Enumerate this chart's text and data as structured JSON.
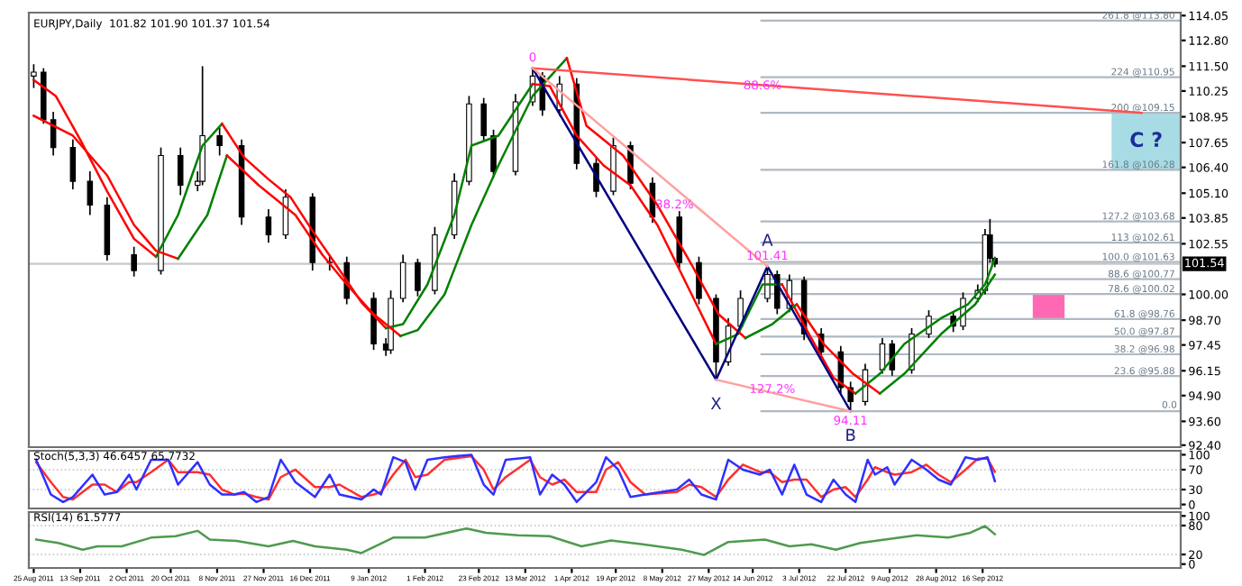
{
  "chart_data": [
    {
      "type": "candlestick",
      "title": "EURJPY,Daily  101.82 101.90 101.37 101.54",
      "color": "#000000",
      "legend": false,
      "tick_labels": "y",
      "x": [
        "2011-08-25",
        "2011-08-29",
        "2011-09-02",
        "2011-09-10",
        "2011-09-17",
        "2011-09-24",
        "2011-10-05",
        "2011-10-16",
        "2011-10-24",
        "2011-10-31",
        "2011-11-02",
        "2011-11-09",
        "2011-11-18",
        "2011-11-29",
        "2011-12-06",
        "2011-12-17",
        "2011-12-24",
        "2011-12-31",
        "2012-01-11",
        "2012-01-16",
        "2012-01-18",
        "2012-01-23",
        "2012-01-29",
        "2012-02-05",
        "2012-02-13",
        "2012-02-19",
        "2012-02-25",
        "2012-02-29",
        "2012-03-09",
        "2012-03-16",
        "2012-03-20",
        "2012-03-27",
        "2012-04-03",
        "2012-04-11",
        "2012-04-18",
        "2012-04-25",
        "2012-05-04",
        "2012-05-15",
        "2012-05-23",
        "2012-05-30",
        "2012-06-04",
        "2012-06-09",
        "2012-06-20",
        "2012-06-24",
        "2012-06-29",
        "2012-07-05",
        "2012-07-12",
        "2012-07-20",
        "2012-07-24",
        "2012-07-30",
        "2012-08-06",
        "2012-08-10",
        "2012-08-18",
        "2012-08-25",
        "2012-09-04",
        "2012-09-08",
        "2012-09-14",
        "2012-09-17",
        "2012-09-19",
        "2012-09-21"
      ],
      "ohlc": [
        [
          111.0,
          111.6,
          110.4,
          111.2
        ],
        [
          111.2,
          111.4,
          108.6,
          108.8
        ],
        [
          108.8,
          109.2,
          107.0,
          107.4
        ],
        [
          107.4,
          107.8,
          105.3,
          105.7
        ],
        [
          105.7,
          106.2,
          104.0,
          104.5
        ],
        [
          104.5,
          104.9,
          101.7,
          102.0
        ],
        [
          102.0,
          102.4,
          100.9,
          101.2
        ],
        [
          101.2,
          107.4,
          101.0,
          107.0
        ],
        [
          107.0,
          107.4,
          105.0,
          105.5
        ],
        [
          105.5,
          106.2,
          105.2,
          105.7
        ],
        [
          105.7,
          111.5,
          105.5,
          108.0
        ],
        [
          108.0,
          108.4,
          107.0,
          107.5
        ],
        [
          107.5,
          107.8,
          103.5,
          103.9
        ],
        [
          103.9,
          104.3,
          102.6,
          103.0
        ],
        [
          103.0,
          105.3,
          102.8,
          104.9
        ],
        [
          104.9,
          105.1,
          101.2,
          101.6
        ],
        [
          101.6,
          102.0,
          101.2,
          101.6
        ],
        [
          101.6,
          101.9,
          99.5,
          99.8
        ],
        [
          99.8,
          100.1,
          97.2,
          97.5
        ],
        [
          97.5,
          97.8,
          96.9,
          97.2
        ],
        [
          97.2,
          100.2,
          97.0,
          99.8
        ],
        [
          99.8,
          102.0,
          99.6,
          101.6
        ],
        [
          101.6,
          101.8,
          99.9,
          100.2
        ],
        [
          100.2,
          103.4,
          100.0,
          103.0
        ],
        [
          103.0,
          106.1,
          102.8,
          105.7
        ],
        [
          105.7,
          110.0,
          105.5,
          109.6
        ],
        [
          109.6,
          109.9,
          107.7,
          108.0
        ],
        [
          108.0,
          108.3,
          105.9,
          106.2
        ],
        [
          106.2,
          110.1,
          106.0,
          109.7
        ],
        [
          109.7,
          111.4,
          109.5,
          111.0
        ],
        [
          111.0,
          111.2,
          109.0,
          109.3
        ],
        [
          109.3,
          111.0,
          109.0,
          110.6
        ],
        [
          110.6,
          110.9,
          106.3,
          106.6
        ],
        [
          106.6,
          106.9,
          104.9,
          105.2
        ],
        [
          105.2,
          107.9,
          105.0,
          107.5
        ],
        [
          107.5,
          107.7,
          105.3,
          105.6
        ],
        [
          105.6,
          105.9,
          103.6,
          103.9
        ],
        [
          103.9,
          104.2,
          101.3,
          101.6
        ],
        [
          101.6,
          101.9,
          99.5,
          99.8
        ],
        [
          99.8,
          100.0,
          95.7,
          96.6
        ],
        [
          96.6,
          98.8,
          96.4,
          98.4
        ],
        [
          98.4,
          100.2,
          98.2,
          99.8
        ],
        [
          99.8,
          101.41,
          99.6,
          101.0
        ],
        [
          101.0,
          101.2,
          99.0,
          99.3
        ],
        [
          99.3,
          101.0,
          99.1,
          100.7
        ],
        [
          100.7,
          100.9,
          97.7,
          98.0
        ],
        [
          98.0,
          98.3,
          96.8,
          97.1
        ],
        [
          97.1,
          97.4,
          95.0,
          95.3
        ],
        [
          95.3,
          95.6,
          94.11,
          94.6
        ],
        [
          94.6,
          96.5,
          94.4,
          96.2
        ],
        [
          96.2,
          97.8,
          96.0,
          97.5
        ],
        [
          97.5,
          97.7,
          95.9,
          96.2
        ],
        [
          96.2,
          98.3,
          96.0,
          98.0
        ],
        [
          98.0,
          99.2,
          97.8,
          98.9
        ],
        [
          98.9,
          99.1,
          98.1,
          98.4
        ],
        [
          98.4,
          100.1,
          98.2,
          99.8
        ],
        [
          99.8,
          100.5,
          99.6,
          100.2
        ],
        [
          100.2,
          103.3,
          100.0,
          103.0
        ],
        [
          103.0,
          103.8,
          101.6,
          101.82
        ],
        [
          101.82,
          101.9,
          101.37,
          101.54
        ]
      ],
      "series": [
        {
          "type": "line",
          "color": "#ff0000",
          "x": [
            "2011-08-25",
            "2011-09-03",
            "2011-09-13",
            "2011-09-24",
            "2011-10-05",
            "2011-10-14"
          ],
          "values": [
            110.8,
            110.0,
            107.8,
            105.2,
            102.8,
            101.9
          ]
        },
        {
          "type": "line",
          "color": "#008000",
          "x": [
            "2011-10-14",
            "2011-10-23",
            "2011-11-02",
            "2011-11-10"
          ],
          "values": [
            101.9,
            104.0,
            107.5,
            108.6
          ]
        },
        {
          "type": "line",
          "color": "#ff0000",
          "x": [
            "2011-11-10",
            "2011-11-19",
            "2011-11-29",
            "2011-12-08",
            "2011-12-17",
            "2011-12-26",
            "2012-01-06",
            "2012-01-16"
          ],
          "values": [
            108.6,
            106.9,
            105.8,
            104.9,
            103.2,
            101.6,
            99.6,
            98.3
          ]
        },
        {
          "type": "line",
          "color": "#008000",
          "x": [
            "2012-01-16",
            "2012-01-23",
            "2012-02-02",
            "2012-02-13",
            "2012-02-20",
            "2012-03-02",
            "2012-03-16"
          ],
          "values": [
            98.3,
            98.5,
            100.5,
            104.0,
            107.5,
            108.0,
            110.6
          ]
        },
        {
          "type": "line",
          "color": "#ff0000",
          "x": [
            "2012-03-16",
            "2012-03-23",
            "2012-04-03",
            "2012-04-14",
            "2012-04-25",
            "2012-05-06",
            "2012-05-20",
            "2012-05-30"
          ],
          "values": [
            110.6,
            110.5,
            108.0,
            106.5,
            105.5,
            103.5,
            100.0,
            97.5
          ]
        },
        {
          "type": "line",
          "color": "#008000",
          "x": [
            "2012-05-30",
            "2012-06-08",
            "2012-06-18",
            "2012-06-26"
          ],
          "values": [
            97.5,
            98.0,
            100.5,
            100.5
          ]
        },
        {
          "type": "line",
          "color": "#ff0000",
          "x": [
            "2012-06-26",
            "2012-07-07",
            "2012-07-17",
            "2012-07-26"
          ],
          "values": [
            100.5,
            98.0,
            95.8,
            95.0
          ]
        },
        {
          "type": "line",
          "color": "#008000",
          "x": [
            "2012-07-26",
            "2012-08-05",
            "2012-08-15",
            "2012-08-30",
            "2012-09-10",
            "2012-09-17",
            "2012-09-21"
          ],
          "values": [
            95.0,
            96.0,
            97.5,
            98.8,
            99.5,
            100.5,
            101.8
          ]
        },
        {
          "type": "line",
          "color": "#ff0000",
          "x": [
            "2011-08-25",
            "2011-09-10",
            "2011-09-24",
            "2011-10-05",
            "2011-10-14",
            "2011-10-23"
          ],
          "values": [
            109.0,
            108.0,
            106.0,
            103.5,
            102.2,
            101.8
          ]
        },
        {
          "type": "line",
          "color": "#008000",
          "x": [
            "2011-10-23",
            "2011-11-04",
            "2011-11-12"
          ],
          "values": [
            101.8,
            104.0,
            107.0
          ]
        },
        {
          "type": "line",
          "color": "#ff0000",
          "x": [
            "2011-11-12",
            "2011-11-25",
            "2011-12-10",
            "2011-12-21",
            "2011-12-31",
            "2012-01-11",
            "2012-01-22"
          ],
          "values": [
            107.0,
            105.5,
            104.0,
            102.0,
            100.5,
            99.0,
            97.9
          ]
        },
        {
          "type": "line",
          "color": "#008000",
          "x": [
            "2012-01-22",
            "2012-01-29",
            "2012-02-09",
            "2012-02-20",
            "2012-03-02",
            "2012-03-16",
            "2012-03-30"
          ],
          "values": [
            97.9,
            98.2,
            100.0,
            103.5,
            106.5,
            110.0,
            111.9
          ]
        },
        {
          "type": "line",
          "color": "#ff0000",
          "x": [
            "2012-03-30",
            "2012-04-07",
            "2012-04-22",
            "2012-05-06",
            "2012-05-20",
            "2012-05-31",
            "2012-06-11"
          ],
          "values": [
            111.9,
            108.5,
            107.0,
            104.5,
            101.5,
            99.0,
            97.8
          ]
        },
        {
          "type": "line",
          "color": "#008000",
          "x": [
            "2012-06-11",
            "2012-06-22",
            "2012-07-02"
          ],
          "values": [
            97.8,
            98.5,
            99.5
          ]
        },
        {
          "type": "line",
          "color": "#ff0000",
          "x": [
            "2012-07-02",
            "2012-07-13",
            "2012-07-25",
            "2012-08-05"
          ],
          "values": [
            99.5,
            97.5,
            96.0,
            95.0
          ]
        },
        {
          "type": "line",
          "color": "#008000",
          "x": [
            "2012-08-05",
            "2012-08-15",
            "2012-08-30",
            "2012-09-13",
            "2012-09-21"
          ],
          "values": [
            95.0,
            96.0,
            98.0,
            99.5,
            101.0
          ]
        },
        {
          "type": "line",
          "color": "#000080",
          "x": [
            "2012-03-16",
            "2012-05-30",
            "2012-06-20",
            "2012-07-24"
          ],
          "values": [
            111.4,
            95.7,
            101.41,
            94.11
          ]
        },
        {
          "type": "line",
          "color": "#ff5050",
          "x": [
            "2012-03-16",
            "2012-11-20"
          ],
          "values": [
            111.4,
            109.15
          ]
        },
        {
          "type": "line",
          "color": "#ffa0a0",
          "x": [
            "2012-03-16",
            "2012-06-20"
          ],
          "values": [
            111.4,
            101.41
          ]
        },
        {
          "type": "line",
          "color": "#ffa0a0",
          "x": [
            "2012-05-30",
            "2012-07-24"
          ],
          "values": [
            95.7,
            94.11
          ]
        },
        {
          "type": "bar",
          "color": "#ff69b4",
          "x": [
            "2012-10-13"
          ],
          "base": [
            98.76
          ],
          "values": [
            1.24
          ]
        }
      ],
      "ylim": [
        92.3,
        114.2
      ],
      "yticks": [
        114.05,
        {
          "value": 112.8,
          "label": "112.80"
        },
        {
          "value": 111.5,
          "label": "111.50"
        },
        110.25,
        108.95,
        107.65,
        {
          "value": 106.4,
          "label": "106.40"
        },
        {
          "value": 105.1,
          "label": "105.10"
        },
        103.85,
        102.55,
        {
          "value": 100.0,
          "label": "100.00"
        },
        {
          "value": 98.7,
          "label": "98.70"
        },
        97.45,
        96.15,
        {
          "value": 94.9,
          "label": "94.90"
        },
        {
          "value": 93.6,
          "label": "93.60"
        },
        {
          "value": 92.4,
          "label": "92.40"
        }
      ],
      "xlim": [
        "2011-08-23",
        "2012-12-06"
      ],
      "ref_lines": [
        {
          "axis": "y",
          "value": 113.8,
          "label": "261.8 @113.80",
          "color": "#b0b8c0"
        },
        {
          "axis": "y",
          "value": 110.95,
          "label": "224 @110.95",
          "color": "#b0b8c0"
        },
        {
          "axis": "y",
          "value": 109.15,
          "label": "200 @109.15",
          "color": "#b0b8c0"
        },
        {
          "axis": "y",
          "value": 106.28,
          "label": "161.8 @106.28",
          "color": "#b0b8c0"
        },
        {
          "axis": "y",
          "value": 103.68,
          "label": "127.2 @103.68",
          "color": "#b0b8c0"
        },
        {
          "axis": "y",
          "value": 102.61,
          "label": "113 @102.61",
          "color": "#b0b8c0"
        },
        {
          "axis": "y",
          "value": 101.63,
          "label": "100.0 @101.63",
          "color": "#b0b8c0"
        },
        {
          "axis": "y",
          "value": 100.77,
          "label": "88.6 @100.77",
          "color": "#b0b8c0"
        },
        {
          "axis": "y",
          "value": 100.02,
          "label": "78.6 @100.02",
          "color": "#b0b8c0"
        },
        {
          "axis": "y",
          "value": 98.76,
          "label": "61.8 @98.76",
          "color": "#b0b8c0"
        },
        {
          "axis": "y",
          "value": 97.87,
          "label": "50.0 @97.87",
          "color": "#b0b8c0"
        },
        {
          "axis": "y",
          "value": 96.98,
          "label": "38.2 @96.98",
          "color": "#b0b8c0"
        },
        {
          "axis": "y",
          "value": 95.88,
          "label": "23.6 @95.88",
          "color": "#b0b8c0"
        },
        {
          "axis": "y",
          "value": 94.11,
          "color": "#b0b8c0"
        },
        {
          "axis": "y",
          "value": 101.54,
          "label": "101.54",
          "color": "#c8c8c8",
          "line_style": "solid"
        }
      ],
      "bands": [
        {
          "axis": "y",
          "from": 106.28,
          "to": 109.15,
          "label": "C ?",
          "color": "#a8dce4"
        }
      ],
      "annotations": [
        {
          "text": "0",
          "x": "2012-03-16",
          "y": 111.4
        },
        {
          "text": "X",
          "x": "2012-05-30",
          "y": 95.7
        },
        {
          "text": "A",
          "x": "2012-06-20",
          "y": 101.41
        },
        {
          "text": "101.41",
          "x": "2012-06-20",
          "y": 101.41
        },
        {
          "text": "B",
          "x": "2012-07-24",
          "y": 94.11
        },
        {
          "text": "94.11",
          "x": "2012-07-24",
          "y": 94.11
        },
        {
          "text": "38.2%",
          "x": "2012-05-13",
          "y": 104.5
        },
        {
          "text": "88.6%",
          "x": "2012-06-18",
          "y": 110.5
        },
        {
          "text": "127.2%",
          "x": "2012-06-22",
          "y": 95.2
        },
        {
          "text": "0.0",
          "x": "2012-12-06",
          "y": 94.11
        }
      ]
    },
    {
      "type": "line",
      "title": "Stoch(5,3,3) 46.6457 65.7732",
      "tick_labels": "y",
      "xlim": [
        "2011-08-23",
        "2012-12-06"
      ],
      "ylim": [
        -8,
        108
      ],
      "yticks": [
        100,
        70,
        30,
        0
      ],
      "ref_lines": [
        {
          "axis": "y",
          "value": 70,
          "color": "#c0c0c0",
          "line_style": "dotted"
        },
        {
          "axis": "y",
          "value": 30,
          "color": "#c0c0c0",
          "line_style": "dotted"
        }
      ],
      "x": [
        "2011-08-26",
        "2011-09-01",
        "2011-09-06",
        "2011-09-10",
        "2011-09-18",
        "2011-09-23",
        "2011-09-28",
        "2011-10-03",
        "2011-10-06",
        "2011-10-12",
        "2011-10-19",
        "2011-10-23",
        "2011-10-31",
        "2011-11-05",
        "2011-11-10",
        "2011-11-15",
        "2011-11-19",
        "2011-11-24",
        "2011-11-29",
        "2011-12-04",
        "2011-12-10",
        "2011-12-18",
        "2011-12-24",
        "2011-12-28",
        "2012-01-06",
        "2012-01-11",
        "2012-01-14",
        "2012-01-19",
        "2012-01-24",
        "2012-01-28",
        "2012-02-02",
        "2012-02-09",
        "2012-02-20",
        "2012-02-25",
        "2012-02-29",
        "2012-03-05",
        "2012-03-15",
        "2012-03-19",
        "2012-03-24",
        "2012-03-29",
        "2012-04-03",
        "2012-04-11",
        "2012-04-15",
        "2012-04-20",
        "2012-04-25",
        "2012-05-01",
        "2012-05-14",
        "2012-05-19",
        "2012-05-24",
        "2012-05-30",
        "2012-06-04",
        "2012-06-10",
        "2012-06-17",
        "2012-06-21",
        "2012-06-26",
        "2012-07-01",
        "2012-07-06",
        "2012-07-12",
        "2012-07-17",
        "2012-07-22",
        "2012-07-26",
        "2012-07-31",
        "2012-08-03",
        "2012-08-08",
        "2012-08-11",
        "2012-08-18",
        "2012-08-24",
        "2012-08-29",
        "2012-09-03",
        "2012-09-09",
        "2012-09-14",
        "2012-09-18",
        "2012-09-21"
      ],
      "series": [
        {
          "color": "#ff3030",
          "values": [
            85,
            45,
            15,
            10,
            40,
            40,
            25,
            45,
            45,
            65,
            90,
            65,
            65,
            60,
            30,
            20,
            22,
            15,
            10,
            55,
            70,
            35,
            35,
            40,
            15,
            20,
            25,
            60,
            90,
            55,
            60,
            90,
            97,
            70,
            30,
            55,
            90,
            55,
            40,
            50,
            25,
            25,
            70,
            85,
            45,
            20,
            25,
            40,
            35,
            15,
            50,
            80,
            65,
            65,
            45,
            50,
            50,
            15,
            30,
            35,
            15,
            50,
            75,
            65,
            60,
            65,
            80,
            60,
            45,
            70,
            92,
            92,
            66
          ]
        },
        {
          "color": "#3030ff",
          "values": [
            90,
            20,
            5,
            15,
            60,
            20,
            25,
            60,
            30,
            90,
            90,
            40,
            85,
            40,
            20,
            20,
            25,
            5,
            15,
            90,
            45,
            15,
            60,
            20,
            10,
            30,
            20,
            95,
            85,
            30,
            90,
            95,
            100,
            40,
            20,
            90,
            95,
            20,
            60,
            40,
            5,
            45,
            95,
            70,
            15,
            20,
            30,
            50,
            20,
            10,
            90,
            70,
            60,
            70,
            20,
            80,
            20,
            5,
            50,
            20,
            5,
            90,
            60,
            75,
            40,
            90,
            70,
            50,
            40,
            95,
            90,
            95,
            47
          ]
        }
      ]
    },
    {
      "type": "line",
      "title": "RSI(14) 61.5777",
      "xlim": [
        "2011-08-23",
        "2012-12-06"
      ],
      "ylim": [
        -8,
        108
      ],
      "yticks": [
        100,
        80,
        20,
        0
      ],
      "ref_lines": [
        {
          "axis": "y",
          "value": 80,
          "color": "#c0c0c0",
          "line_style": "dotted"
        },
        {
          "axis": "y",
          "value": 20,
          "color": "#c0c0c0",
          "line_style": "dotted"
        }
      ],
      "xticks": [
        {
          "value": "2011-08-25",
          "label": "25 Aug 2011"
        },
        {
          "value": "2011-09-13",
          "label": "13 Sep 2011"
        },
        {
          "value": "2011-10-02",
          "label": "2 Oct 2011"
        },
        {
          "value": "2011-10-20",
          "label": "20 Oct 2011"
        },
        {
          "value": "2011-11-08",
          "label": "8 Nov 2011"
        },
        {
          "value": "2011-11-27",
          "label": "27 Nov 2011"
        },
        {
          "value": "2011-12-16",
          "label": "16 Dec 2011"
        },
        {
          "value": "2012-01-09",
          "label": "9 Jan 2012"
        },
        {
          "value": "2012-02-01",
          "label": "1 Feb 2012"
        },
        {
          "value": "2012-02-23",
          "label": "23 Feb 2012"
        },
        {
          "value": "2012-03-13",
          "label": "13 Mar 2012"
        },
        {
          "value": "2012-04-01",
          "label": "1 Apr 2012"
        },
        {
          "value": "2012-04-19",
          "label": "19 Apr 2012"
        },
        {
          "value": "2012-05-08",
          "label": "8 May 2012"
        },
        {
          "value": "2012-05-27",
          "label": "27 May 2012"
        },
        {
          "value": "2012-06-14",
          "label": "14 Jun 2012"
        },
        {
          "value": "2012-07-03",
          "label": "3 Jul 2012"
        },
        {
          "value": "2012-07-22",
          "label": "22 Jul 2012"
        },
        {
          "value": "2012-08-09",
          "label": "9 Aug 2012"
        },
        {
          "value": "2012-08-28",
          "label": "28 Aug 2012"
        },
        {
          "value": "2012-09-16",
          "label": "16 Sep 2012"
        }
      ],
      "x": [
        "2011-08-26",
        "2011-09-04",
        "2011-09-14",
        "2011-09-20",
        "2011-09-30",
        "2011-10-12",
        "2011-10-22",
        "2011-10-31",
        "2011-11-05",
        "2011-11-16",
        "2011-11-29",
        "2011-12-09",
        "2011-12-18",
        "2011-12-31",
        "2012-01-06",
        "2012-01-19",
        "2012-02-01",
        "2012-02-18",
        "2012-02-26",
        "2012-03-10",
        "2012-03-23",
        "2012-04-05",
        "2012-04-17",
        "2012-04-30",
        "2012-05-16",
        "2012-05-25",
        "2012-06-04",
        "2012-06-19",
        "2012-06-29",
        "2012-07-08",
        "2012-07-18",
        "2012-07-28",
        "2012-08-07",
        "2012-08-20",
        "2012-09-02",
        "2012-09-11",
        "2012-09-17",
        "2012-09-21"
      ],
      "series": [
        {
          "color": "#4f9a4f",
          "values": [
            51,
            44,
            30,
            37,
            37,
            55,
            58,
            69,
            51,
            48,
            37,
            48,
            37,
            30,
            23,
            55,
            55,
            74,
            65,
            60,
            58,
            37,
            49,
            41,
            30,
            19,
            46,
            51,
            37,
            41,
            30,
            44,
            51,
            60,
            55,
            65,
            79,
            62
          ]
        }
      ]
    }
  ]
}
